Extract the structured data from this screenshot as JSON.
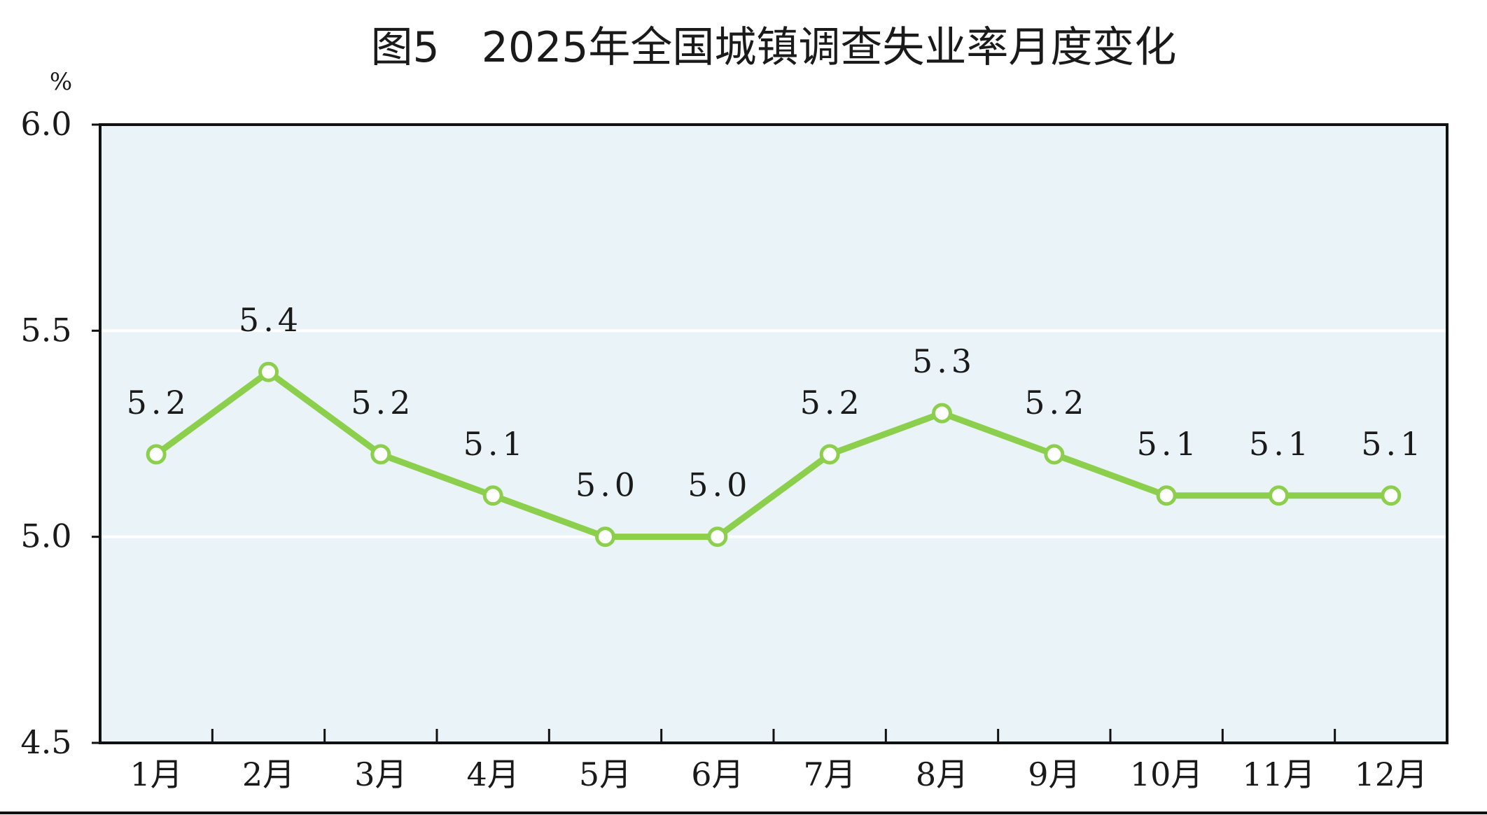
{
  "colors": {
    "plot_background": "#eaf4f8",
    "line": "#8ccf4d",
    "marker_fill": "#ffffff",
    "gridline": "#ffffff",
    "axis": "#111111",
    "text": "#1a1a1a"
  },
  "chart_data": {
    "type": "line",
    "title": "图5　2025年全国城镇调查失业率月度变化",
    "ylabel": "%",
    "xlabel": "",
    "ylim": [
      4.5,
      6.0
    ],
    "yticks": [
      "4.5",
      "5.0",
      "5.5",
      "6.0"
    ],
    "grid": true,
    "categories": [
      "1月",
      "2月",
      "3月",
      "4月",
      "5月",
      "6月",
      "7月",
      "8月",
      "9月",
      "10月",
      "11月",
      "12月"
    ],
    "values": [
      5.2,
      5.4,
      5.2,
      5.1,
      5.0,
      5.0,
      5.2,
      5.3,
      5.2,
      5.1,
      5.1,
      5.1
    ],
    "data_labels": [
      "5.2",
      "5.4",
      "5.2",
      "5.1",
      "5.0",
      "5.0",
      "5.2",
      "5.3",
      "5.2",
      "5.1",
      "5.1",
      "5.1"
    ]
  }
}
